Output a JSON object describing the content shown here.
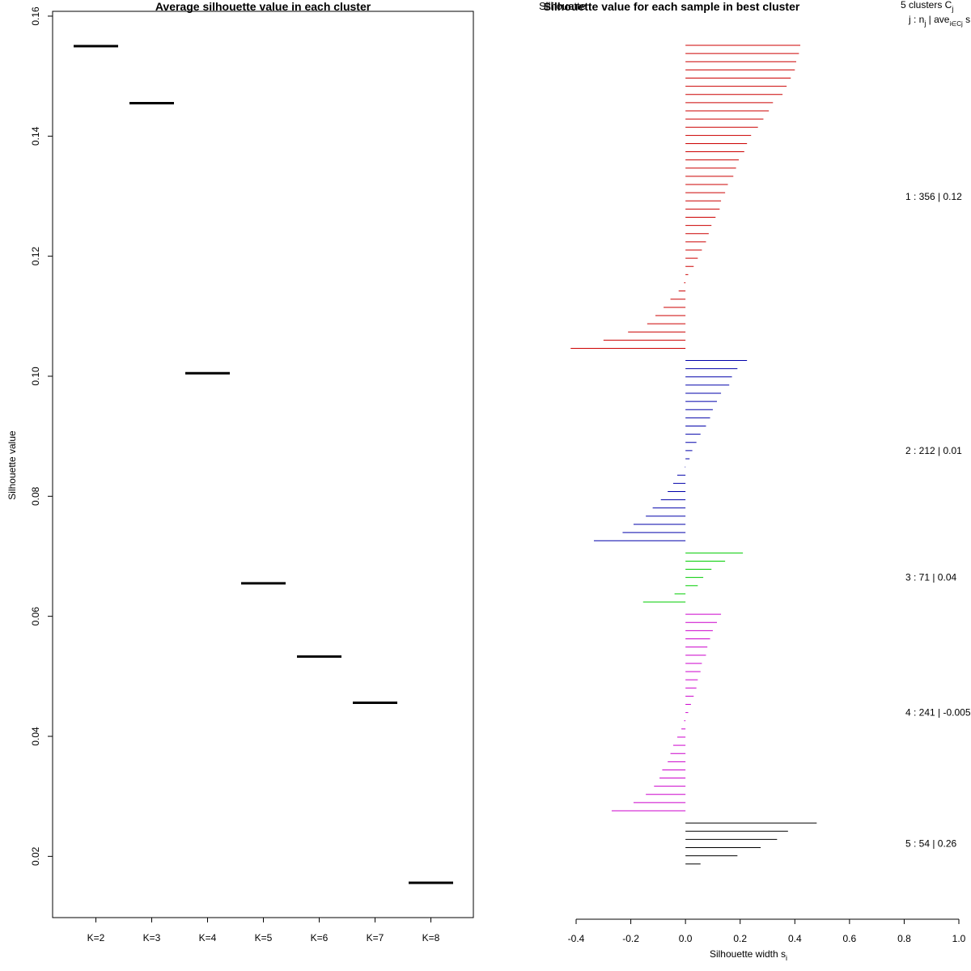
{
  "chart_data": [
    {
      "type": "scatter",
      "title": "Average silhouette value in each cluster",
      "xlabel": "",
      "ylabel": "Silhouette value",
      "categories": [
        "K=2",
        "K=3",
        "K=4",
        "K=5",
        "K=6",
        "K=7",
        "K=8"
      ],
      "values": [
        0.155,
        0.1455,
        0.1005,
        0.0655,
        0.0533,
        0.0456,
        0.0156
      ],
      "ylim": [
        0.0098,
        0.1608
      ],
      "yticks": [
        0.02,
        0.04,
        0.06,
        0.08,
        0.1,
        0.12,
        0.14,
        0.16
      ],
      "ytick_labels": [
        "0.02",
        "0.04",
        "0.06",
        "0.08",
        "0.10",
        "0.12",
        "0.14",
        "0.16"
      ],
      "grid": false
    },
    {
      "type": "bar",
      "orientation": "horizontal",
      "title": "Silhouette value for each sample in best cluster",
      "title_overlap": "Silhouette",
      "xlabel": "Silhouette width s",
      "xlabel_sub": "i",
      "xlim": [
        -0.4,
        1.0
      ],
      "xticks": [
        -0.4,
        -0.2,
        0.0,
        0.2,
        0.4,
        0.6,
        0.8,
        1.0
      ],
      "xtick_labels": [
        "-0.4",
        "-0.2",
        "0.0",
        "0.2",
        "0.4",
        "0.6",
        "0.8",
        "1.0"
      ],
      "legend_header": {
        "line1": "5  clusters  C",
        "line1_sub": "j",
        "line2_a": "j :  n",
        "line2_sub1": "j",
        "line2_b": " | ave",
        "line2_sub2": "i∈Cj",
        "line2_c": "  s"
      },
      "clusters": [
        {
          "label": "1 :  356  |  0.12",
          "color": "#cc0000",
          "values": [
            0.42,
            0.415,
            0.405,
            0.4,
            0.385,
            0.37,
            0.355,
            0.32,
            0.305,
            0.285,
            0.265,
            0.24,
            0.225,
            0.215,
            0.195,
            0.185,
            0.175,
            0.155,
            0.145,
            0.13,
            0.125,
            0.11,
            0.095,
            0.085,
            0.075,
            0.06,
            0.045,
            0.03,
            0.01,
            -0.005,
            -0.025,
            -0.055,
            -0.08,
            -0.11,
            -0.14,
            -0.21,
            -0.3,
            -0.42
          ]
        },
        {
          "label": "2 :  212  |  0.01",
          "color": "#0000aa",
          "values": [
            0.225,
            0.19,
            0.17,
            0.16,
            0.13,
            0.115,
            0.1,
            0.09,
            0.075,
            0.055,
            0.04,
            0.025,
            0.015,
            -0.002,
            -0.03,
            -0.045,
            -0.065,
            -0.09,
            -0.12,
            -0.145,
            -0.19,
            -0.23,
            -0.335
          ]
        },
        {
          "label": "3 :  71  |  0.04",
          "color": "#00cc00",
          "values": [
            0.21,
            0.145,
            0.095,
            0.065,
            0.045,
            -0.04,
            -0.155
          ]
        },
        {
          "label": "4 :  241  |  -0.005",
          "color": "#cc00cc",
          "values": [
            0.13,
            0.115,
            0.1,
            0.09,
            0.08,
            0.075,
            0.06,
            0.055,
            0.045,
            0.04,
            0.03,
            0.02,
            0.01,
            -0.005,
            -0.015,
            -0.03,
            -0.045,
            -0.055,
            -0.065,
            -0.085,
            -0.095,
            -0.115,
            -0.145,
            -0.19,
            -0.27
          ]
        },
        {
          "label": "5 :  54  |  0.26",
          "color": "#000000",
          "values": [
            0.48,
            0.375,
            0.335,
            0.275,
            0.19,
            0.055
          ]
        }
      ]
    }
  ]
}
